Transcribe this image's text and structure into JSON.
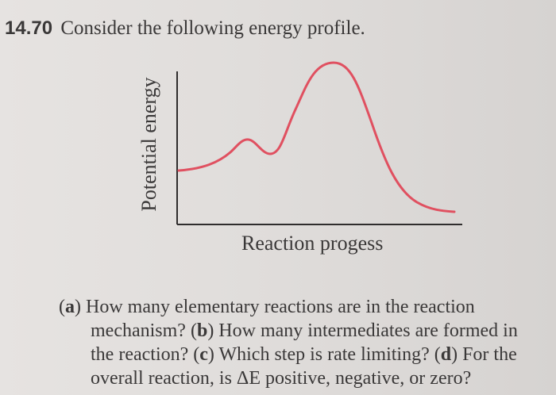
{
  "problem": {
    "number": "14.70",
    "title": "Consider the following energy profile."
  },
  "figure": {
    "y_axis_label": "Potential energy",
    "x_axis_label": "Reaction progess",
    "curve_color": "#e05060",
    "axis_color": "#2f2d2d"
  },
  "questions": {
    "line1_prefix": "(",
    "line1_letter": "a",
    "line1_text": ") How many elementary reactions are in the reaction",
    "line2_a": "mechanism? (",
    "line2_letter": "b",
    "line2_b": ") How many intermediates are formed in",
    "line3_a": "the reaction? (",
    "line3_letter": "c",
    "line3_b": ") Which step is rate limiting? (",
    "line3_letter2": "d",
    "line3_c": ") For the",
    "line4": "overall reaction, is ΔE positive, negative, or zero?"
  }
}
